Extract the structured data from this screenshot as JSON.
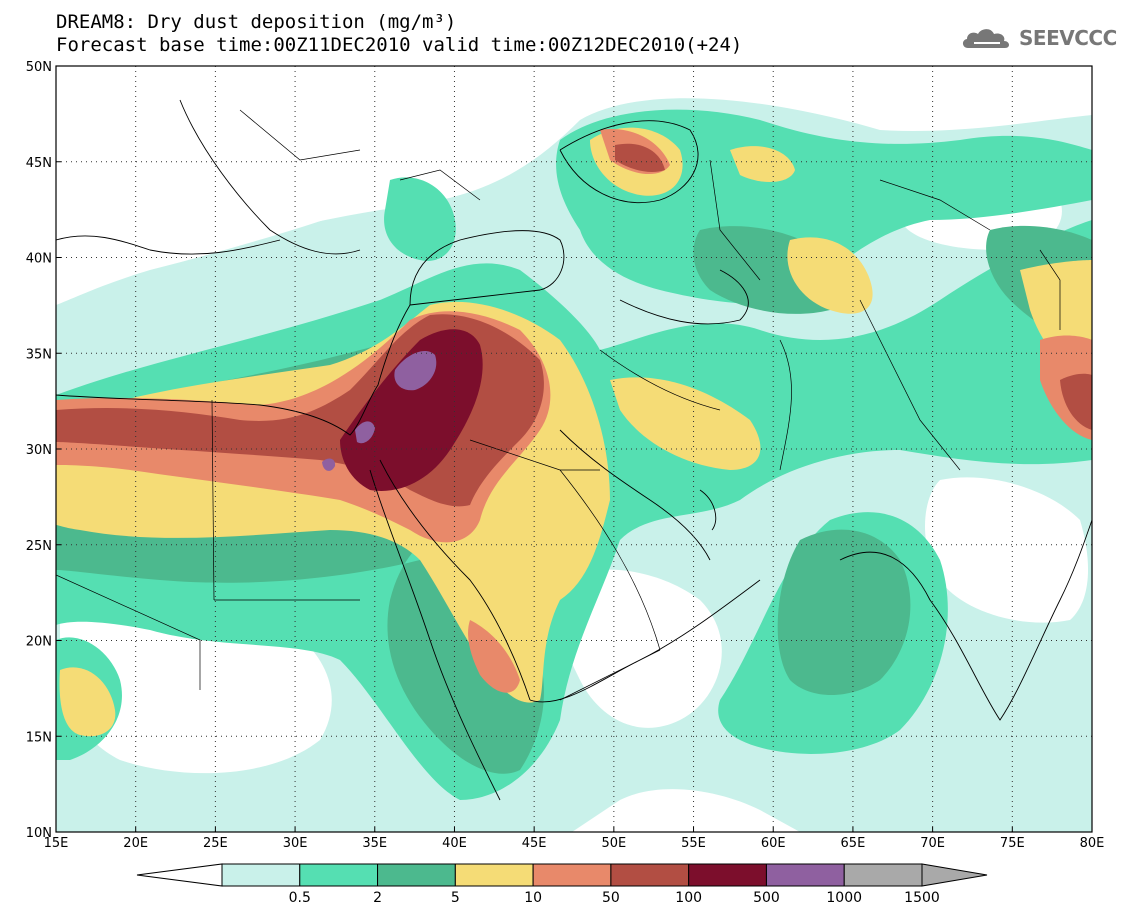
{
  "header": {
    "title_line1": "DREAM8: Dry dust deposition (mg/m³)",
    "title_line2": "Forecast base time:00Z11DEC2010 valid time:00Z12DEC2010(+24)"
  },
  "logo": {
    "text": "SEEVCCC",
    "icon": "cloud-icon"
  },
  "map": {
    "lon_range": [
      15,
      80
    ],
    "lat_range": [
      10,
      50
    ],
    "lon_ticks": [
      "15E",
      "20E",
      "25E",
      "30E",
      "35E",
      "40E",
      "45E",
      "50E",
      "55E",
      "60E",
      "65E",
      "70E",
      "75E",
      "80E"
    ],
    "lat_ticks": [
      "10N",
      "15N",
      "20N",
      "25N",
      "30N",
      "35N",
      "40N",
      "45N",
      "50N"
    ],
    "grid": "dotted",
    "background_color": "#ffffff"
  },
  "colorbar": {
    "labels": [
      "0.5",
      "2",
      "5",
      "10",
      "50",
      "100",
      "500",
      "1000",
      "1500"
    ],
    "colors": [
      "#ffffff",
      "#c9f1ea",
      "#55dfb2",
      "#4cb98e",
      "#f5dc76",
      "#e8896a",
      "#b24e43",
      "#7c0e2c",
      "#8f60a0",
      "#a9a9a9"
    ]
  }
}
